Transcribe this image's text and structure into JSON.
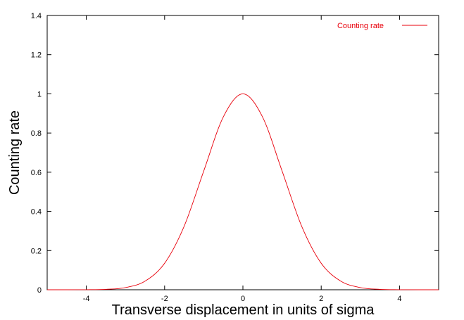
{
  "chart_data": {
    "type": "line",
    "title": "",
    "xlabel": "Transverse displacement in units of sigma",
    "ylabel": "Counting rate",
    "xlim": [
      -5,
      5
    ],
    "ylim": [
      0,
      1.4
    ],
    "x_ticks": [
      -4,
      -2,
      0,
      2,
      4
    ],
    "x_tick_labels": [
      "-4",
      "-2",
      "0",
      "2",
      "4"
    ],
    "y_ticks": [
      0,
      0.2,
      0.4,
      0.6,
      0.8,
      1,
      1.2,
      1.4
    ],
    "y_tick_labels": [
      "0",
      "0.2",
      "0.4",
      "0.6",
      "0.8",
      "1",
      "1.2",
      "1.4"
    ],
    "grid": false,
    "legend_position": "top-right",
    "series": [
      {
        "name": "Counting rate",
        "color": "#e8000b",
        "x": [
          -5,
          -4.5,
          -4,
          -3.5,
          -3,
          -2.5,
          -2,
          -1.5,
          -1,
          -0.5,
          0,
          0.5,
          1,
          1.5,
          2,
          2.5,
          3,
          3.5,
          4,
          4.5,
          5
        ],
        "values": [
          3.7e-06,
          4e-05,
          0.00034,
          0.0022,
          0.0111,
          0.0439,
          0.1353,
          0.3247,
          0.6065,
          0.8825,
          1.0,
          0.8825,
          0.6065,
          0.3247,
          0.1353,
          0.0439,
          0.0111,
          0.0022,
          0.00034,
          4e-05,
          3.7e-06
        ]
      }
    ]
  }
}
